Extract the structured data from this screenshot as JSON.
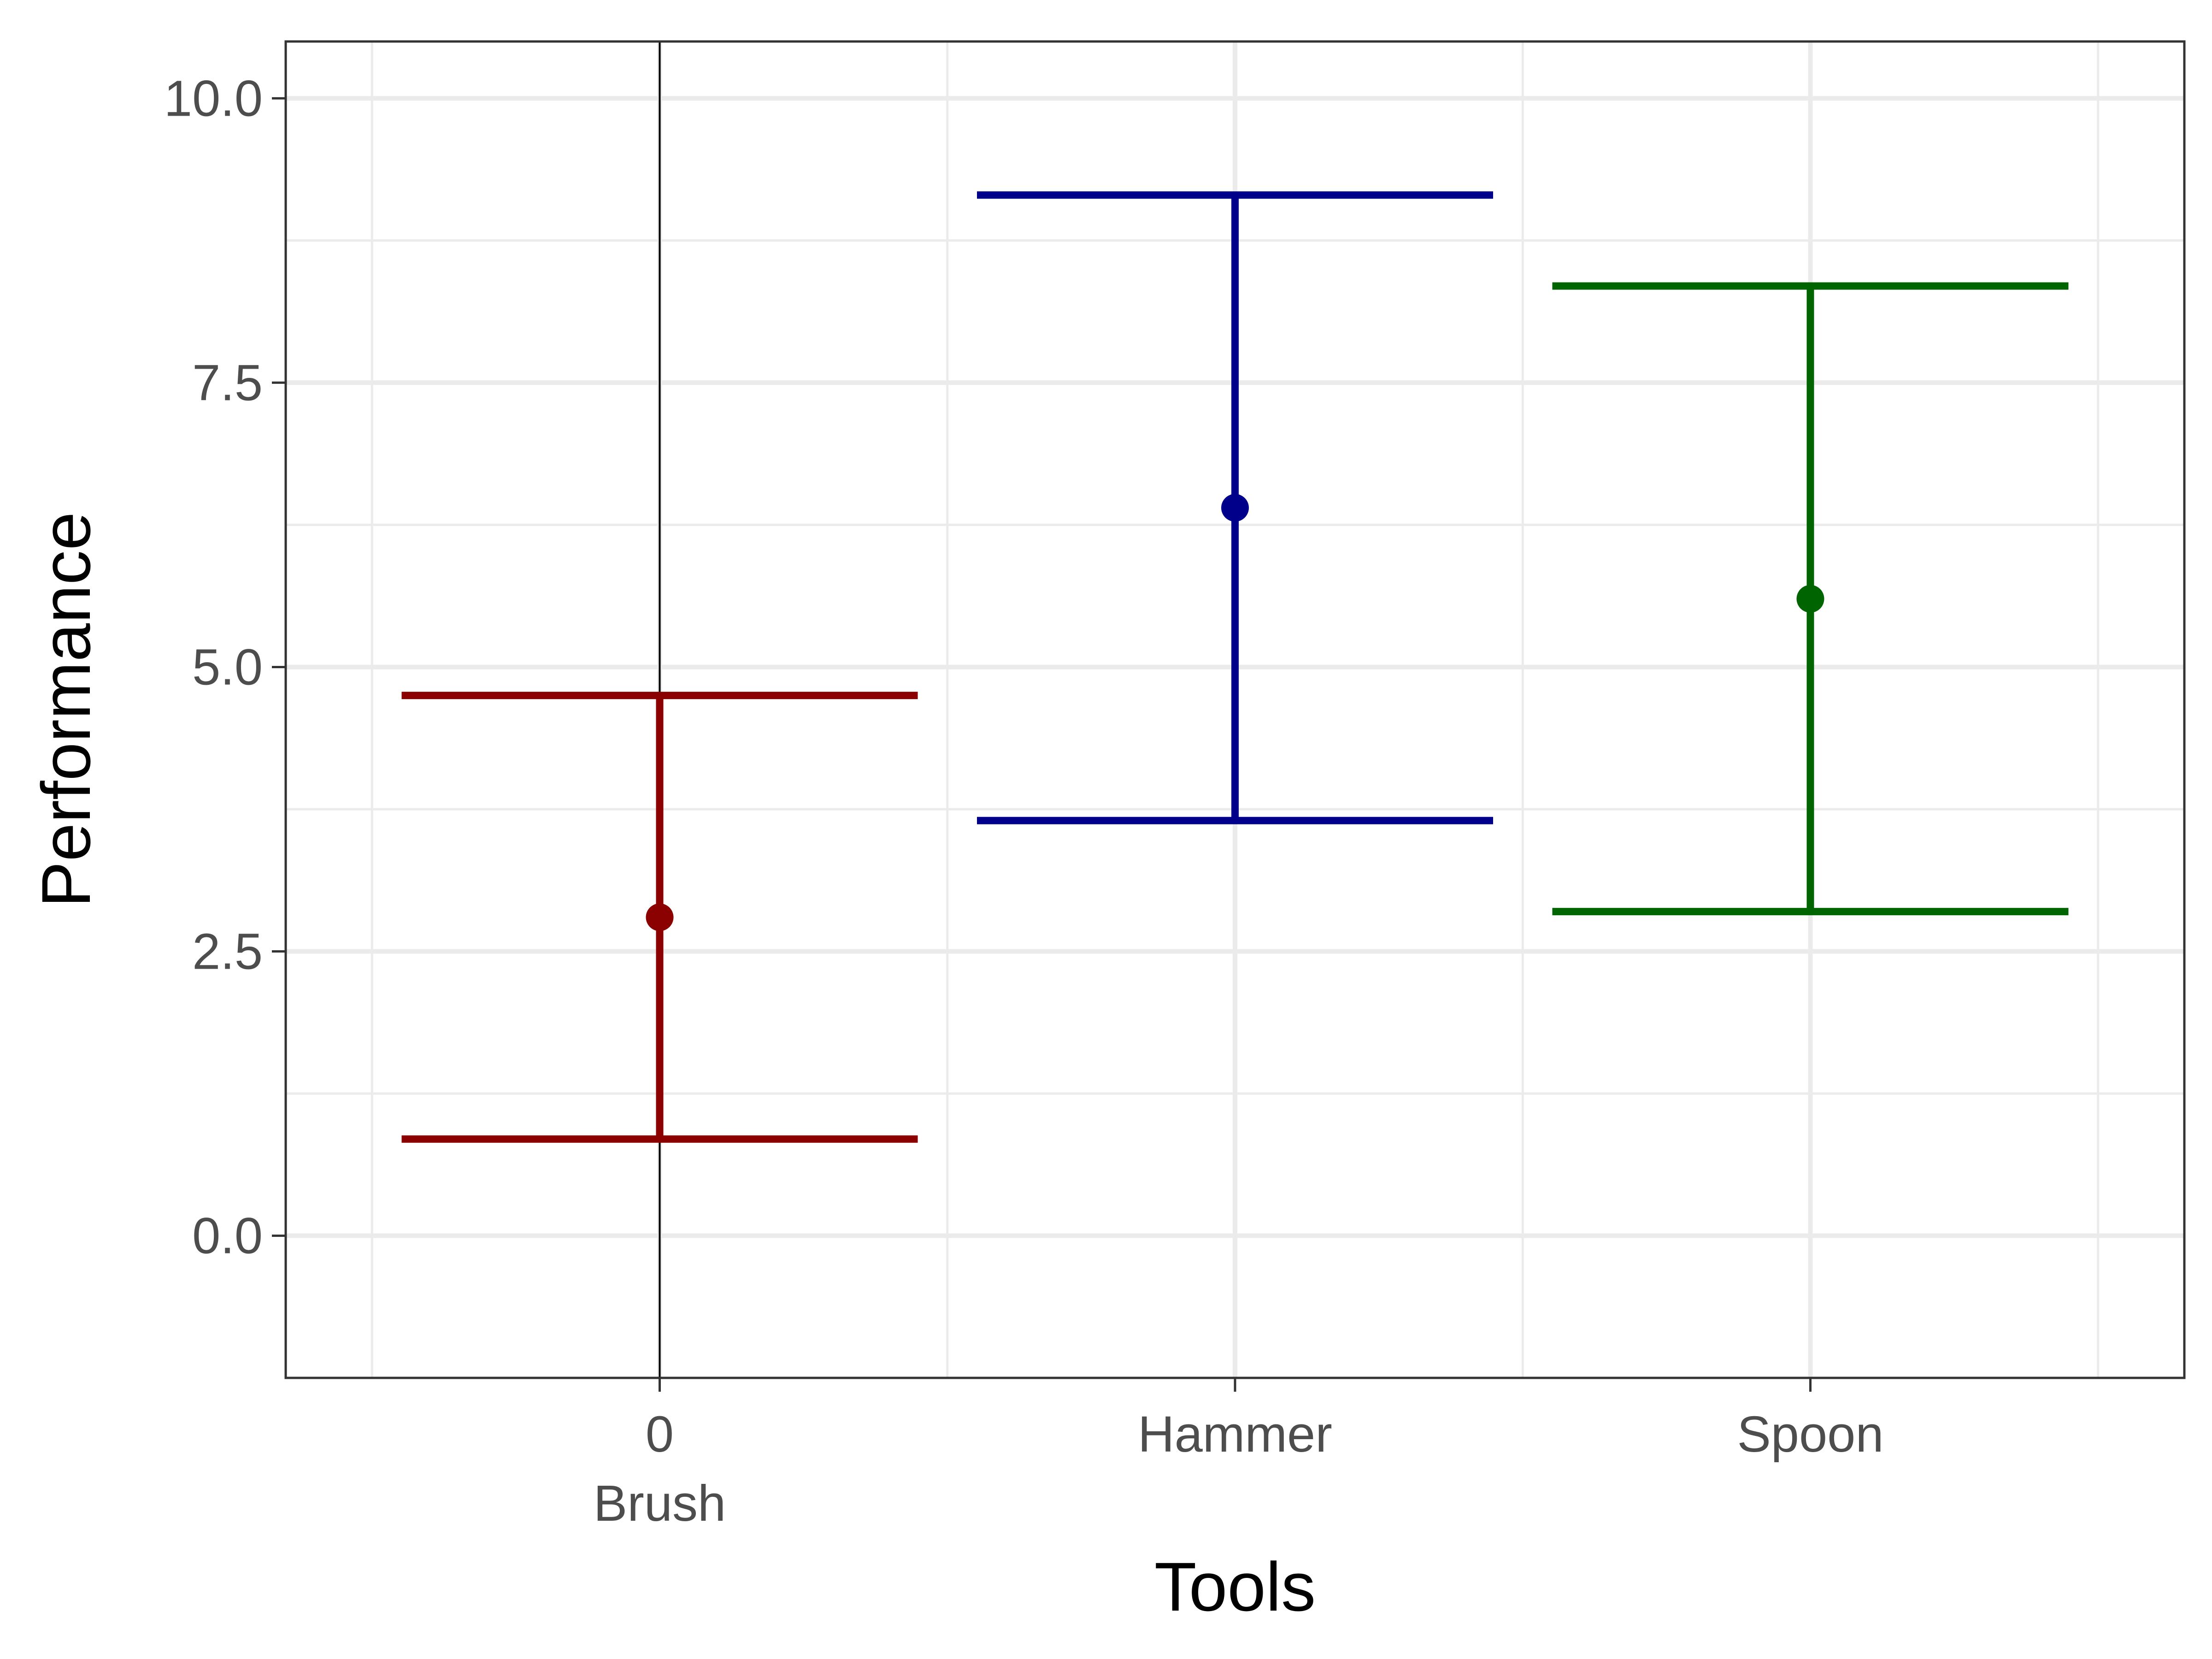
{
  "chart_data": {
    "type": "errorbar",
    "xlabel": "Tools",
    "ylabel": "Performance",
    "ylim": [
      -1.25,
      10.5
    ],
    "yticks": [
      0.0,
      2.5,
      5.0,
      7.5,
      10.0
    ],
    "ytick_labels": [
      "0.0",
      "2.5",
      "5.0",
      "7.5",
      "10.0"
    ],
    "categories": [
      "0",
      "Hammer",
      "Spoon"
    ],
    "x_sublabel": "Brush",
    "vline_at_category": "0",
    "grid": true,
    "series": [
      {
        "category": "0",
        "mean": 2.8,
        "lower": 0.85,
        "upper": 4.75,
        "color": "#8b0000"
      },
      {
        "category": "Hammer",
        "mean": 6.4,
        "lower": 3.65,
        "upper": 9.15,
        "color": "#00008b"
      },
      {
        "category": "Spoon",
        "mean": 5.6,
        "lower": 2.85,
        "upper": 8.35,
        "color": "#006400"
      }
    ]
  }
}
